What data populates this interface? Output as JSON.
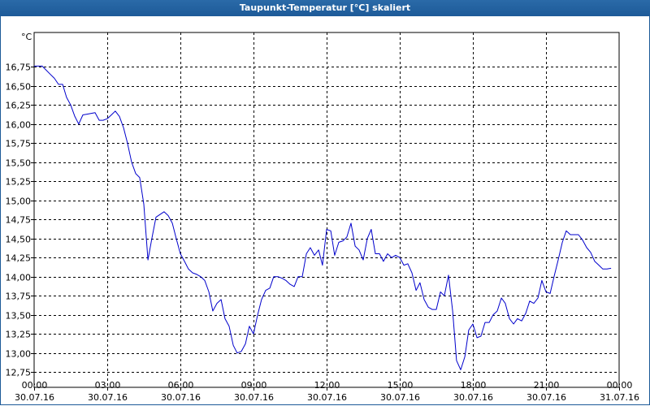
{
  "window": {
    "title": "Taupunkt-Temperatur [°C] skaliert"
  },
  "chart_data": {
    "type": "line",
    "title": "Taupunkt-Temperatur [°C] skaliert",
    "ylabel": "°C",
    "xlabel": "",
    "ylim": [
      12.55,
      17.2
    ],
    "xlim": [
      0,
      24
    ],
    "grid": true,
    "line_color": "#0000cc",
    "y_ticks": [
      {
        "value": 16.75,
        "label": "16,75"
      },
      {
        "value": 16.5,
        "label": "16,50"
      },
      {
        "value": 16.25,
        "label": "16,25"
      },
      {
        "value": 16.0,
        "label": "16,00"
      },
      {
        "value": 15.75,
        "label": "15,75"
      },
      {
        "value": 15.5,
        "label": "15,50"
      },
      {
        "value": 15.25,
        "label": "15,25"
      },
      {
        "value": 15.0,
        "label": "15,00"
      },
      {
        "value": 14.75,
        "label": "14,75"
      },
      {
        "value": 14.5,
        "label": "14,50"
      },
      {
        "value": 14.25,
        "label": "14,25"
      },
      {
        "value": 14.0,
        "label": "14,00"
      },
      {
        "value": 13.75,
        "label": "13,75"
      },
      {
        "value": 13.5,
        "label": "13,50"
      },
      {
        "value": 13.25,
        "label": "13,25"
      },
      {
        "value": 13.0,
        "label": "13,00"
      },
      {
        "value": 12.75,
        "label": "12,75"
      }
    ],
    "x_ticks": [
      {
        "value": 0,
        "time": "00:00",
        "date": "30.07.16"
      },
      {
        "value": 3,
        "time": "03:00",
        "date": "30.07.16"
      },
      {
        "value": 6,
        "time": "06:00",
        "date": "30.07.16"
      },
      {
        "value": 9,
        "time": "09:00",
        "date": "30.07.16"
      },
      {
        "value": 12,
        "time": "12:00",
        "date": "30.07.16"
      },
      {
        "value": 15,
        "time": "15:00",
        "date": "30.07.16"
      },
      {
        "value": 18,
        "time": "18:00",
        "date": "30.07.16"
      },
      {
        "value": 21,
        "time": "21:00",
        "date": "30.07.16"
      },
      {
        "value": 24,
        "time": "00:00",
        "date": "31.07.16"
      }
    ],
    "series": [
      {
        "x": [
          0,
          0.33,
          0.67,
          0.83,
          1.0,
          1.17,
          1.33,
          1.5,
          1.67,
          1.83,
          2.0,
          2.17,
          2.5,
          2.67,
          2.83,
          3.0,
          3.17,
          3.33,
          3.5,
          3.67,
          3.83,
          4.0,
          4.17,
          4.33,
          4.5,
          4.67,
          4.83,
          5.0,
          5.33,
          5.5,
          5.67,
          5.83,
          6.0,
          6.17,
          6.33,
          6.5,
          6.67,
          6.83,
          7.0,
          7.17,
          7.33,
          7.5,
          7.67,
          7.83,
          8.0,
          8.17,
          8.33,
          8.5,
          8.67,
          8.83,
          9.0,
          9.17,
          9.33,
          9.5,
          9.67,
          9.83,
          10.0,
          10.17,
          10.33,
          10.5,
          10.67,
          10.83,
          11.0,
          11.17,
          11.33,
          11.5,
          11.67,
          11.83,
          12.0,
          12.17,
          12.33,
          12.5,
          12.67,
          12.83,
          13.0,
          13.17,
          13.33,
          13.5,
          13.67,
          13.83,
          14.0,
          14.17,
          14.33,
          14.5,
          14.67,
          14.83,
          15.0,
          15.17,
          15.33,
          15.5,
          15.67,
          15.83,
          16.0,
          16.17,
          16.33,
          16.5,
          16.67,
          16.83,
          17.0,
          17.17,
          17.33,
          17.5,
          17.67,
          17.83,
          18.0,
          18.17,
          18.33,
          18.5,
          18.67,
          18.83,
          19.0,
          19.17,
          19.33,
          19.5,
          19.67,
          19.83,
          20.0,
          20.17,
          20.33,
          20.5,
          20.67,
          20.83,
          21.0,
          21.17,
          21.33,
          21.5,
          21.67,
          21.83,
          22.0,
          22.17,
          22.33,
          22.5,
          22.67,
          22.83,
          23.0,
          23.17,
          23.33,
          23.5,
          23.67
        ],
        "values": [
          16.76,
          16.76,
          16.65,
          16.6,
          16.52,
          16.52,
          16.35,
          16.25,
          16.1,
          16.0,
          16.12,
          16.13,
          16.15,
          16.05,
          16.05,
          16.07,
          16.12,
          16.17,
          16.1,
          15.95,
          15.75,
          15.5,
          15.35,
          15.3,
          14.95,
          14.22,
          14.5,
          14.78,
          14.85,
          14.8,
          14.7,
          14.5,
          14.3,
          14.2,
          14.1,
          14.05,
          14.03,
          14.0,
          13.95,
          13.8,
          13.55,
          13.65,
          13.7,
          13.45,
          13.35,
          13.1,
          13.0,
          13.02,
          13.12,
          13.35,
          13.25,
          13.5,
          13.7,
          13.82,
          13.85,
          14.0,
          14.0,
          13.98,
          13.95,
          13.9,
          13.87,
          14.0,
          14.0,
          14.3,
          14.38,
          14.28,
          14.35,
          14.15,
          14.62,
          14.6,
          14.28,
          14.45,
          14.47,
          14.52,
          14.7,
          14.4,
          14.35,
          14.22,
          14.5,
          14.62,
          14.3,
          14.3,
          14.2,
          14.3,
          14.25,
          14.28,
          14.25,
          14.15,
          14.17,
          14.05,
          13.82,
          13.92,
          13.7,
          13.6,
          13.57,
          13.57,
          13.8,
          13.75,
          14.02,
          13.55,
          12.9,
          12.78,
          12.95,
          13.3,
          13.38,
          13.2,
          13.22,
          13.4,
          13.4,
          13.5,
          13.55,
          13.72,
          13.65,
          13.45,
          13.38,
          13.45,
          13.42,
          13.52,
          13.68,
          13.65,
          13.72,
          13.95,
          13.8,
          13.78,
          14.0,
          14.22,
          14.45,
          14.6,
          14.55,
          14.55,
          14.55,
          14.48,
          14.38,
          14.32,
          14.2,
          14.15,
          14.1,
          14.1,
          14.11
        ]
      }
    ]
  }
}
